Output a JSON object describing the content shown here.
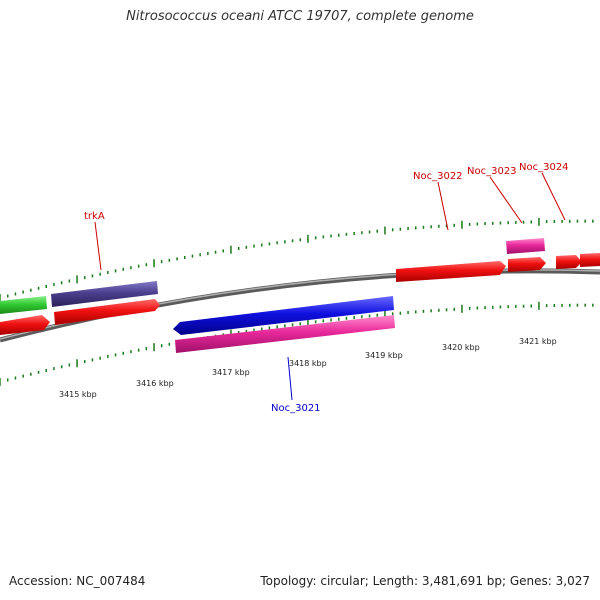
{
  "title": "Nitrosococcus oceani ATCC 19707, complete genome",
  "footer": {
    "accession": "Accession: NC_007484",
    "summary": "Topology: circular; Length: 3,481,691 bp; Genes: 3,027"
  },
  "colors": {
    "red": "#ee1111",
    "green": "#33cc33",
    "purple": "#4b3f8e",
    "blue": "#1010e0",
    "pink": "#e8289a",
    "backbone": "#8c8c8c",
    "tick": "#1a7a1a",
    "label_red": "#cc0000",
    "label_blue": "#0000cc"
  },
  "scale_labels": [
    "3415 kbp",
    "3416 kbp",
    "3417 kbp",
    "3418 kbp",
    "3419 kbp",
    "3420 kbp",
    "3421 kbp"
  ],
  "gene_labels": [
    {
      "text": "trkA",
      "color": "label_red"
    },
    {
      "text": "Noc_3022",
      "color": "label_red"
    },
    {
      "text": "Noc_3023",
      "color": "label_red"
    },
    {
      "text": "Noc_3024",
      "color": "label_red"
    },
    {
      "text": "Noc_3021",
      "color": "label_blue"
    }
  ]
}
